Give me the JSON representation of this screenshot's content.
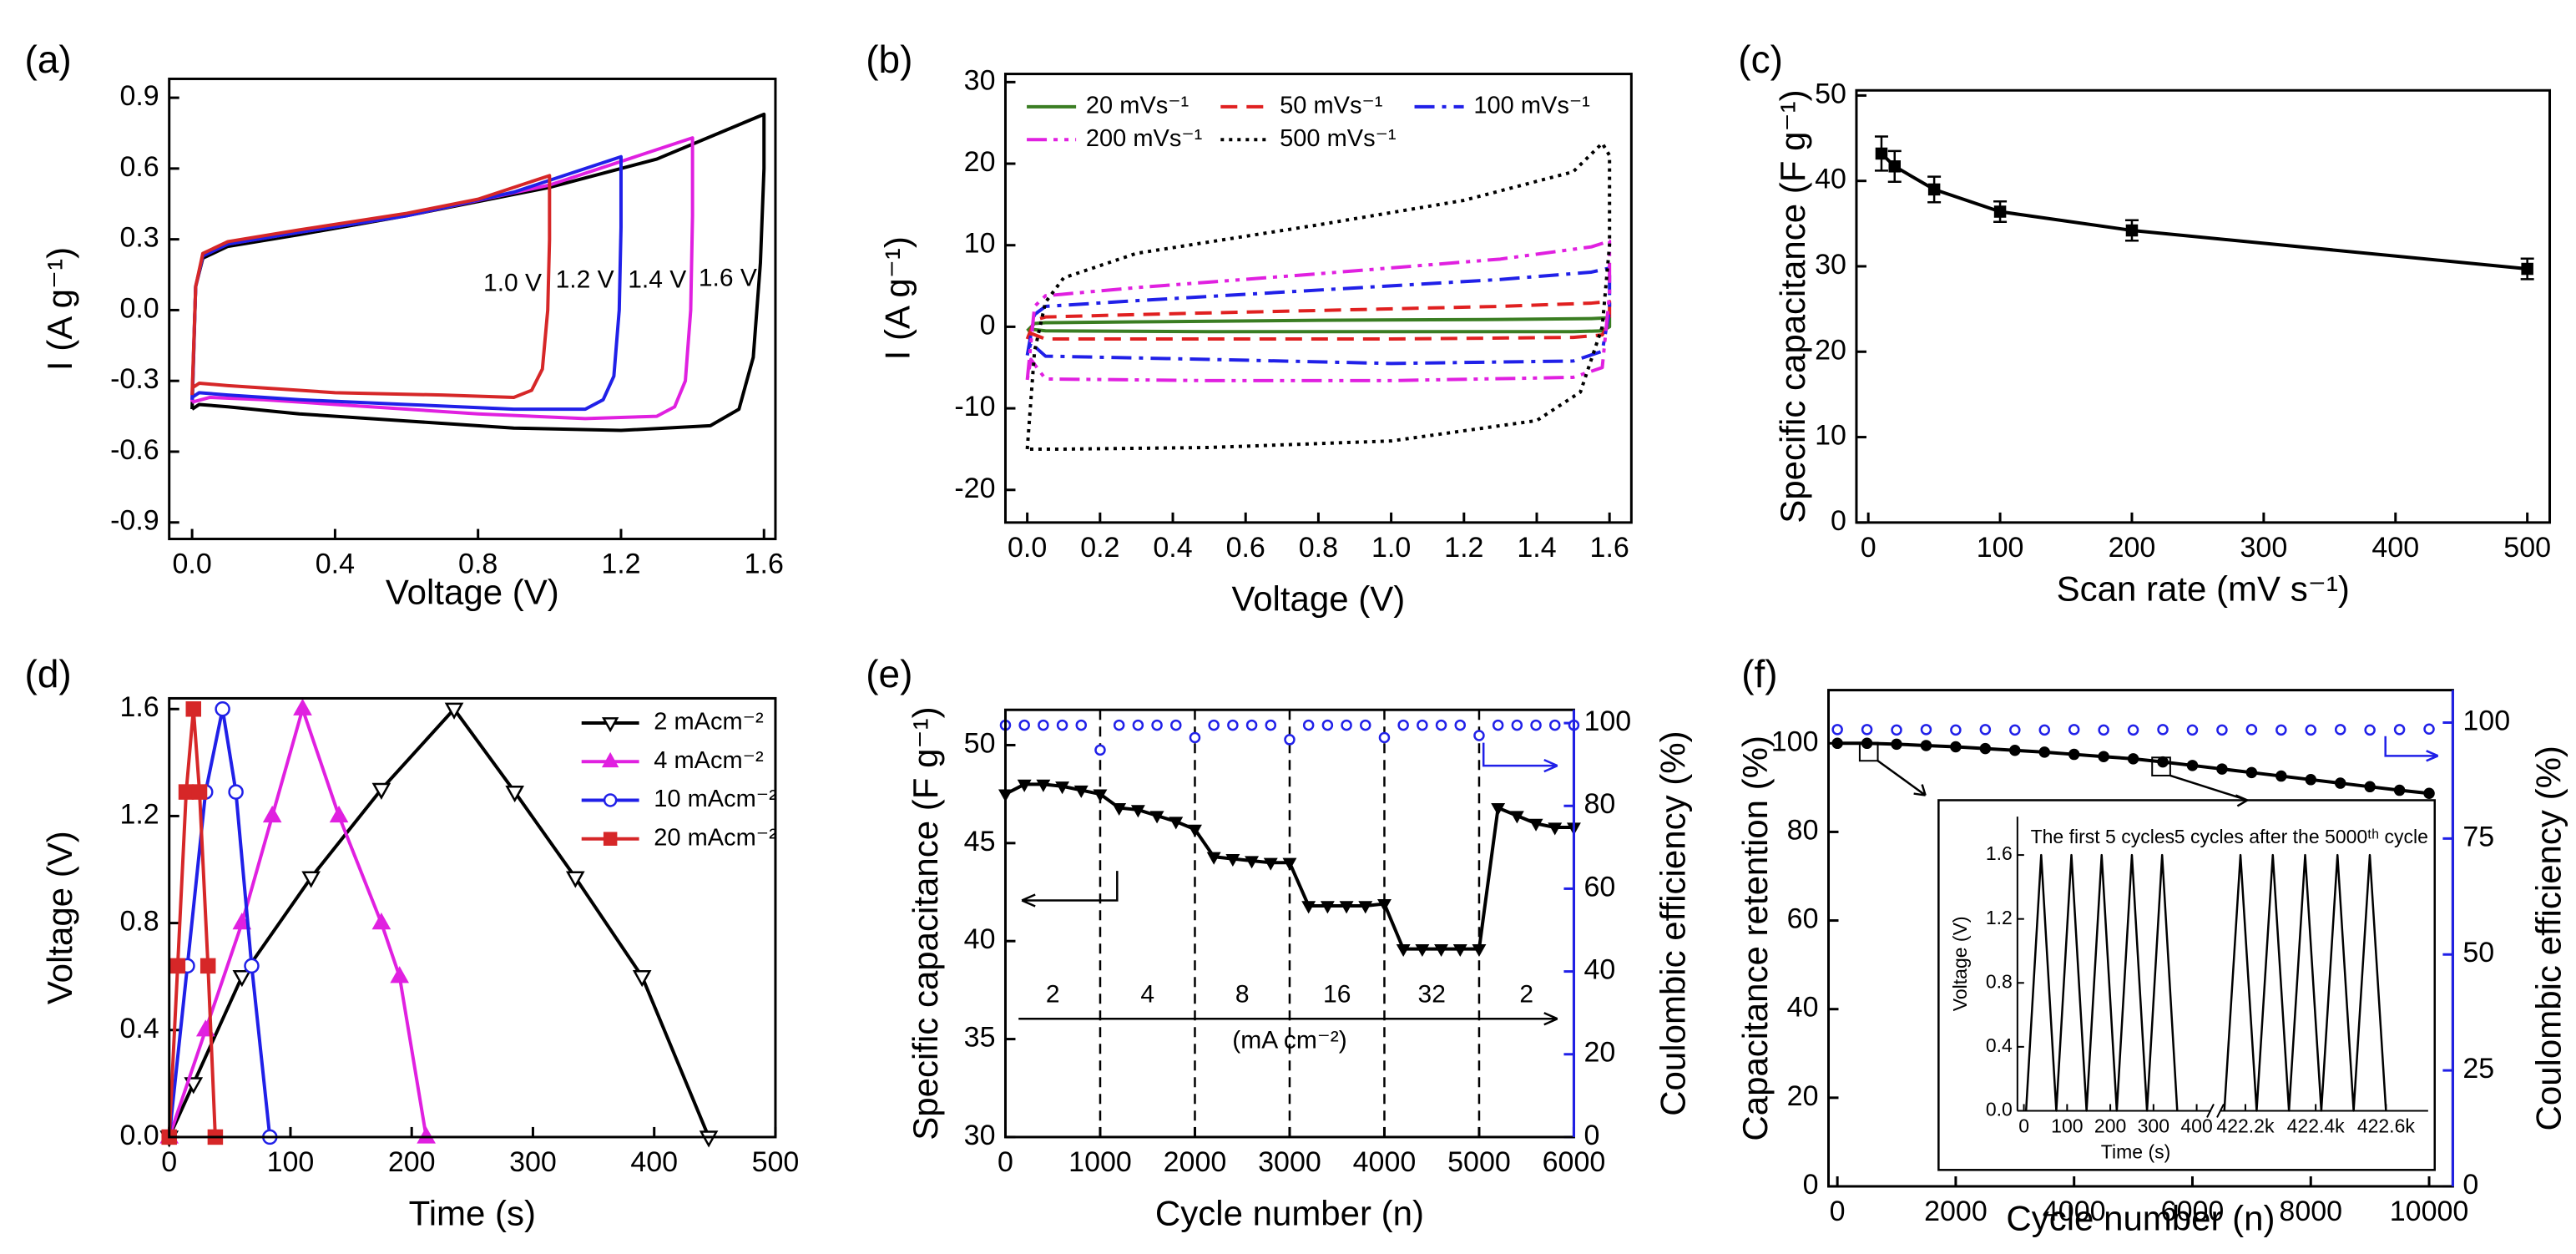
{
  "chart_data": [
    {
      "type": "line",
      "panel": "(a)",
      "xlabel": "Voltage (V)",
      "ylabel": "I (A g⁻¹)",
      "xlim": [
        -0.064,
        1.632
      ],
      "ylim": [
        -0.97,
        0.98
      ],
      "xticks": [
        {
          "value": 0,
          "label": "0.0"
        },
        0.4,
        0.8,
        1.2,
        1.6
      ],
      "yticks": [
        -0.9,
        -0.6,
        -0.3,
        {
          "value": 0,
          "label": "0.0"
        },
        0.3,
        0.6,
        0.9
      ],
      "series": [
        {
          "color": "#000000",
          "x": [
            0,
            0.01,
            0.03,
            0.1,
            0.3,
            0.6,
            1.0,
            1.3,
            1.6,
            1.6,
            1.59,
            1.57,
            1.53,
            1.45,
            1.2,
            0.9,
            0.6,
            0.3,
            0.1,
            0.02,
            0
          ],
          "values": [
            -0.42,
            0.1,
            0.22,
            0.27,
            0.32,
            0.4,
            0.52,
            0.64,
            0.83,
            0.6,
            0.2,
            -0.2,
            -0.42,
            -0.49,
            -0.51,
            -0.5,
            -0.47,
            -0.44,
            -0.41,
            -0.4,
            -0.42
          ]
        },
        {
          "color": "#e020e0",
          "x": [
            0,
            0.01,
            0.03,
            0.1,
            0.3,
            0.6,
            1.0,
            1.4,
            1.4,
            1.395,
            1.38,
            1.35,
            1.3,
            1.1,
            0.8,
            0.5,
            0.2,
            0.05,
            0
          ],
          "values": [
            -0.39,
            0.1,
            0.23,
            0.28,
            0.33,
            0.4,
            0.53,
            0.73,
            0.4,
            0,
            -0.3,
            -0.41,
            -0.45,
            -0.46,
            -0.44,
            -0.41,
            -0.38,
            -0.37,
            -0.39
          ]
        },
        {
          "color": "#2020e8",
          "x": [
            0,
            0.01,
            0.03,
            0.1,
            0.3,
            0.6,
            0.9,
            1.2,
            1.2,
            1.195,
            1.18,
            1.15,
            1.1,
            0.9,
            0.6,
            0.3,
            0.1,
            0.02,
            0
          ],
          "values": [
            -0.38,
            0.1,
            0.23,
            0.28,
            0.33,
            0.4,
            0.5,
            0.65,
            0.35,
            0,
            -0.28,
            -0.38,
            -0.42,
            -0.42,
            -0.4,
            -0.38,
            -0.36,
            -0.35,
            -0.37
          ]
        },
        {
          "color": "#d62728",
          "x": [
            0,
            0.01,
            0.03,
            0.1,
            0.3,
            0.6,
            0.8,
            1.0,
            1.0,
            0.995,
            0.98,
            0.95,
            0.9,
            0.7,
            0.4,
            0.1,
            0.02,
            0
          ],
          "values": [
            -0.36,
            0.1,
            0.24,
            0.29,
            0.34,
            0.41,
            0.47,
            0.57,
            0.3,
            0,
            -0.25,
            -0.34,
            -0.37,
            -0.36,
            -0.35,
            -0.32,
            -0.31,
            -0.33
          ]
        }
      ],
      "annotations": [
        "1.0 V",
        "1.2 V",
        "1.4 V",
        "1.6 V"
      ]
    },
    {
      "type": "line",
      "panel": "(b)",
      "xlabel": "Voltage (V)",
      "ylabel": "I (A g⁻¹)",
      "xlim": [
        -0.06,
        1.66
      ],
      "ylim": [
        -24,
        31
      ],
      "xticks": [
        {
          "value": 0,
          "label": "0.0"
        },
        0.2,
        0.4,
        0.6,
        0.8,
        {
          "value": 1,
          "label": "1.0"
        },
        1.2,
        1.4,
        1.6
      ],
      "yticks": [
        -20,
        -10,
        0,
        10,
        20,
        30
      ],
      "legend": "upper left",
      "series": [
        {
          "name": "20 mVs⁻¹",
          "color": "#3a7d22",
          "dash": "solid",
          "x": [
            0,
            0.02,
            0.05,
            0.3,
            0.8,
            1.3,
            1.55,
            1.6,
            1.6,
            1.58,
            1.5,
            1.0,
            0.5,
            0.05,
            0.01,
            0
          ],
          "values": [
            -0.5,
            0.4,
            0.5,
            0.6,
            0.8,
            0.9,
            1.0,
            1.1,
            0,
            -0.5,
            -0.6,
            -0.6,
            -0.6,
            -0.5,
            -0.3,
            -0.5
          ]
        },
        {
          "name": "50 mVs⁻¹",
          "color": "#e02020",
          "dash": "dash",
          "x": [
            0,
            0.02,
            0.05,
            0.3,
            0.8,
            1.3,
            1.55,
            1.6,
            1.6,
            1.58,
            1.5,
            1.0,
            0.5,
            0.05,
            0.01,
            0
          ],
          "values": [
            -1.5,
            0.8,
            1.2,
            1.5,
            2.0,
            2.5,
            2.9,
            3.1,
            0.5,
            -1,
            -1.3,
            -1.5,
            -1.5,
            -1.5,
            -0.8,
            -1.5
          ]
        },
        {
          "name": "100 mVs⁻¹",
          "color": "#2020e8",
          "dash": "dashdot",
          "x": [
            0,
            0.02,
            0.05,
            0.3,
            0.8,
            1.3,
            1.55,
            1.6,
            1.6,
            1.58,
            1.5,
            1.0,
            0.5,
            0.05,
            0.01,
            0
          ],
          "values": [
            -3.5,
            1.5,
            2.5,
            3.2,
            4.5,
            5.8,
            6.7,
            7.2,
            2,
            -3,
            -4.2,
            -4.5,
            -4.0,
            -3.6,
            -2,
            -3.5
          ]
        },
        {
          "name": "200 mVs⁻¹",
          "color": "#e020e0",
          "dash": "dashdotdot",
          "x": [
            0,
            0.02,
            0.05,
            0.3,
            0.8,
            1.3,
            1.55,
            1.6,
            1.6,
            1.58,
            1.5,
            1.0,
            0.5,
            0.05,
            0.01,
            0
          ],
          "values": [
            -6.5,
            2.5,
            3.8,
            4.8,
            6.5,
            8.3,
            9.8,
            10.5,
            4,
            -5,
            -6.2,
            -6.6,
            -6.6,
            -6.4,
            -4,
            -6.5
          ]
        },
        {
          "name": "500 mVs⁻¹",
          "color": "#000000",
          "dash": "dot",
          "x": [
            0,
            0.02,
            0.05,
            0.1,
            0.3,
            0.8,
            1.2,
            1.5,
            1.58,
            1.6,
            1.6,
            1.58,
            1.52,
            1.4,
            1.0,
            0.5,
            0.1,
            0.02,
            0
          ],
          "values": [
            -15,
            -3,
            3,
            6,
            9,
            12.5,
            15.5,
            19,
            22.5,
            21,
            10,
            0,
            -8,
            -11.5,
            -14,
            -14.8,
            -15,
            -15,
            -15
          ]
        }
      ]
    },
    {
      "type": "line",
      "panel": "(c)",
      "xlabel": "Scan rate (mV s⁻¹)",
      "ylabel": "Specific capacitance (F g⁻¹)",
      "xlim": [
        -9,
        517
      ],
      "ylim": [
        0,
        50.6
      ],
      "xticks": [
        0,
        100,
        200,
        300,
        400,
        500
      ],
      "yticks": [
        0,
        10,
        20,
        30,
        40,
        50
      ],
      "x": [
        10,
        20,
        50,
        100,
        200,
        500
      ],
      "series": [
        {
          "color": "#000000",
          "marker": "square",
          "marker_fill": true,
          "values": [
            43.2,
            41.7,
            39,
            36.4,
            34.2,
            29.7
          ],
          "errors": [
            2,
            1.8,
            1.5,
            1.2,
            1.2,
            1.2
          ]
        }
      ]
    },
    {
      "type": "line",
      "panel": "(d)",
      "xlabel": "Time (s)",
      "ylabel": "Voltage (V)",
      "xlim": [
        0,
        500
      ],
      "ylim": [
        0,
        1.64
      ],
      "xticks": [
        0,
        100,
        200,
        300,
        400,
        500
      ],
      "yticks": [
        {
          "value": 0,
          "label": "0.0"
        },
        0.4,
        0.8,
        1.2,
        1.6
      ],
      "legend": "upper right",
      "series": [
        {
          "name": "2  mAcm⁻²",
          "color": "#000000",
          "marker": "triangle-down",
          "marker_fill": false,
          "x": [
            0,
            20,
            60,
            117,
            175,
            235,
            285,
            335,
            390,
            445
          ],
          "values": [
            0,
            0.2,
            0.6,
            0.97,
            1.3,
            1.6,
            1.29,
            0.97,
            0.6,
            0
          ]
        },
        {
          "name": "4  mAcm⁻²",
          "color": "#e020e0",
          "marker": "triangle-up",
          "marker_fill": true,
          "x": [
            0,
            30,
            60,
            85,
            110,
            140,
            175,
            190,
            212
          ],
          "values": [
            0,
            0.4,
            0.8,
            1.2,
            1.6,
            1.2,
            0.8,
            0.6,
            0
          ]
        },
        {
          "name": "10 mAcm⁻²",
          "color": "#2020e8",
          "marker": "circle",
          "marker_fill": false,
          "x": [
            0,
            15,
            30,
            44,
            55,
            68,
            83
          ],
          "values": [
            0,
            0.64,
            1.29,
            1.6,
            1.29,
            0.64,
            0
          ]
        },
        {
          "name": "20 mAcm⁻²",
          "color": "#d62728",
          "marker": "square",
          "marker_fill": true,
          "x": [
            0,
            7,
            14,
            20,
            25,
            32,
            38
          ],
          "values": [
            0,
            0.64,
            1.29,
            1.6,
            1.29,
            0.64,
            0
          ]
        }
      ]
    },
    {
      "type": "line",
      "panel": "(e)",
      "xlabel": "Cycle number (n)",
      "ylabel": "Specific capacitance (F g⁻¹)",
      "y2label": "Coulombic efficiency (%)",
      "xlim": [
        0,
        6000
      ],
      "ylim": [
        30,
        51.8
      ],
      "y2lim": [
        0,
        103.2
      ],
      "y2color": "#2020e8",
      "xticks": [
        0,
        1000,
        2000,
        3000,
        4000,
        5000,
        6000
      ],
      "yticks": [
        30,
        35,
        40,
        45,
        50
      ],
      "y2ticks": [
        0,
        20,
        40,
        60,
        80,
        100
      ],
      "vlines": [
        1000,
        2000,
        3000,
        4000,
        5000
      ],
      "segment_labels": [
        "2",
        "4",
        "8",
        "16",
        "32",
        "2"
      ],
      "unit_label": "(mA cm⁻²)",
      "x": [
        0,
        200,
        400,
        600,
        800,
        1000,
        1200,
        1400,
        1600,
        1800,
        2000,
        2200,
        2400,
        2600,
        2800,
        3000,
        3200,
        3400,
        3600,
        3800,
        4000,
        4200,
        4400,
        4600,
        4800,
        5000,
        5200,
        5400,
        5600,
        5800,
        6000
      ],
      "series": [
        {
          "color": "#000000",
          "marker": "triangle-down",
          "marker_fill": true,
          "values": [
            47.5,
            48.0,
            48.0,
            47.9,
            47.7,
            47.5,
            46.8,
            46.7,
            46.4,
            46.1,
            45.7,
            44.3,
            44.2,
            44.1,
            44.0,
            44.0,
            41.8,
            41.8,
            41.8,
            41.8,
            41.9,
            39.6,
            39.6,
            39.6,
            39.6,
            39.6,
            46.8,
            46.4,
            46.0,
            45.8,
            45.8
          ]
        },
        {
          "color": "#2020e8",
          "axis": "y2",
          "line": false,
          "marker": "circle",
          "marker_fill": false,
          "values": [
            99.5,
            99.5,
            99.5,
            99.5,
            99.5,
            93.5,
            99.5,
            99.5,
            99.5,
            99.5,
            96.5,
            99.5,
            99.5,
            99.5,
            99.5,
            96,
            99.5,
            99.5,
            99.5,
            99.5,
            96.5,
            99.5,
            99.5,
            99.5,
            99.5,
            97,
            99.5,
            99.5,
            99.5,
            99.5,
            99.5
          ]
        }
      ]
    },
    {
      "type": "line",
      "panel": "(f)",
      "xlabel": "Cycle number (n)",
      "ylabel": "Capacitance retention (%)",
      "y2label": "Coulombic efficiency (%)",
      "xlim": [
        -150,
        10400
      ],
      "ylim": [
        0,
        112
      ],
      "y2lim": [
        0,
        107
      ],
      "y2color": "#2020e8",
      "xticks": [
        0,
        2000,
        4000,
        6000,
        8000,
        10000
      ],
      "yticks": [
        0,
        20,
        40,
        60,
        80,
        100
      ],
      "y2ticks": [
        0,
        25,
        50,
        75,
        100
      ],
      "x": [
        0,
        500,
        1000,
        1500,
        2000,
        2500,
        3000,
        3500,
        4000,
        4500,
        5000,
        5500,
        6000,
        6500,
        7000,
        7500,
        8000,
        8500,
        9000,
        9500,
        10000
      ],
      "series": [
        {
          "color": "#000000",
          "marker": "circle",
          "marker_fill": true,
          "values": [
            100,
            100,
            99.8,
            99.5,
            99.2,
            98.8,
            98.4,
            98,
            97.5,
            97,
            96.5,
            95.8,
            95,
            94.2,
            93.4,
            92.6,
            91.8,
            91,
            90.2,
            89.4,
            88.7
          ]
        },
        {
          "color": "#2020e8",
          "axis": "y2",
          "line": false,
          "marker": "circle",
          "marker_fill": false,
          "values": [
            98.5,
            98.5,
            98.4,
            98.5,
            98.4,
            98.5,
            98.4,
            98.4,
            98.5,
            98.4,
            98.4,
            98.5,
            98.4,
            98.4,
            98.5,
            98.4,
            98.4,
            98.5,
            98.4,
            98.5,
            98.6
          ]
        }
      ],
      "inset": {
        "type": "line",
        "xlabel": "Time (s)",
        "ylabel": "Voltage (V)",
        "ylim": [
          0,
          1.84
        ],
        "yticks": [
          {
            "value": 0,
            "label": "0.0"
          },
          0.4,
          0.8,
          1.2,
          1.6
        ],
        "x_segments": [
          {
            "xlim": [
              -15,
              430
            ],
            "xticks": [
              0,
              100,
              200,
              300,
              400
            ]
          },
          {
            "xlim": [
              422131,
              422720
            ],
            "xticks": [
              {
                "value": 422200,
                "label": "422.2k"
              },
              {
                "value": 422400,
                "label": "422.4k"
              },
              {
                "value": 422600,
                "label": "422.6k"
              }
            ]
          }
        ],
        "series": [
          {
            "color": "#000000",
            "x": [
              5,
              40,
              75,
              110,
              145,
              180,
              215,
              250,
              285,
              320,
              355
            ],
            "values": [
              0,
              1.6,
              0,
              1.6,
              0,
              1.6,
              0,
              1.6,
              0,
              1.6,
              0
            ]
          },
          {
            "color": "#000000",
            "x": [
              422140,
              422186,
              422232,
              422278,
              422324,
              422370,
              422416,
              422462,
              422508,
              422554,
              422600
            ],
            "values": [
              0,
              1.6,
              0,
              1.6,
              0,
              1.6,
              0,
              1.6,
              0,
              1.6,
              0
            ]
          }
        ],
        "annotations": [
          "The first 5 cycles",
          "5 cycles after the 5000ᵗʰ cycle"
        ]
      }
    }
  ]
}
